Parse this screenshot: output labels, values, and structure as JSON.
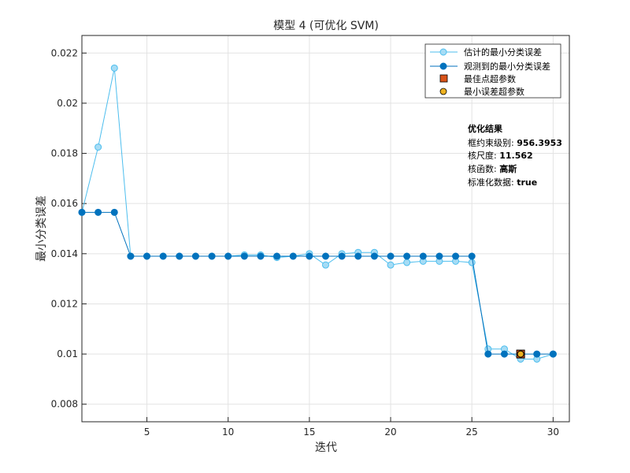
{
  "chart_data": {
    "type": "line",
    "title": "模型 4 (可优化 SVM)",
    "xlabel": "迭代",
    "ylabel": "最小分类误差",
    "xlim": [
      1,
      31
    ],
    "ylim": [
      0.0073,
      0.0227
    ],
    "xticks": [
      5,
      10,
      15,
      20,
      25,
      30
    ],
    "yticks": [
      0.008,
      0.01,
      0.012,
      0.014,
      0.016,
      0.018,
      0.02,
      0.022
    ],
    "ytick_labels": [
      "0.008",
      "0.01",
      "0.012",
      "0.014",
      "0.016",
      "0.018",
      "0.02",
      "0.022"
    ],
    "grid": true,
    "legend_position": "top-right",
    "x": [
      1,
      2,
      3,
      4,
      5,
      6,
      7,
      8,
      9,
      10,
      11,
      12,
      13,
      14,
      15,
      16,
      17,
      18,
      19,
      20,
      21,
      22,
      23,
      24,
      25,
      26,
      27,
      28,
      29,
      30
    ],
    "series": [
      {
        "name": "估计的最小分类误差",
        "color": "#4DBEEE",
        "values": [
          0.01565,
          0.01825,
          0.0214,
          0.0139,
          0.0139,
          0.0139,
          0.0139,
          0.0139,
          0.0139,
          0.0139,
          0.01395,
          0.01395,
          0.01385,
          0.0139,
          0.014,
          0.01355,
          0.014,
          0.01405,
          0.01405,
          0.01355,
          0.01365,
          0.0137,
          0.0137,
          0.0137,
          0.01365,
          0.0102,
          0.0102,
          0.0098,
          0.0098,
          0.01
        ]
      },
      {
        "name": "观测到的最小分类误差",
        "color": "#0072BD",
        "values": [
          0.01565,
          0.01565,
          0.01565,
          0.0139,
          0.0139,
          0.0139,
          0.0139,
          0.0139,
          0.0139,
          0.0139,
          0.0139,
          0.0139,
          0.0139,
          0.0139,
          0.0139,
          0.0139,
          0.0139,
          0.0139,
          0.0139,
          0.0139,
          0.0139,
          0.0139,
          0.0139,
          0.0139,
          0.0139,
          0.01,
          0.01,
          0.01,
          0.01,
          0.01
        ]
      }
    ],
    "markers": [
      {
        "name": "最佳点超参数",
        "color": "#D95319",
        "x": 28,
        "y": 0.01
      },
      {
        "name": "最小误差超参数",
        "color": "#EDB120",
        "x": 28,
        "y": 0.01
      }
    ],
    "annotation": {
      "heading": "优化结果",
      "lines": [
        {
          "label": "框约束级别: ",
          "value": "956.3953"
        },
        {
          "label": "核尺度: ",
          "value": "11.562"
        },
        {
          "label": "核函数: ",
          "value": "高斯"
        },
        {
          "label": "标准化数据: ",
          "value": "true"
        }
      ]
    }
  }
}
